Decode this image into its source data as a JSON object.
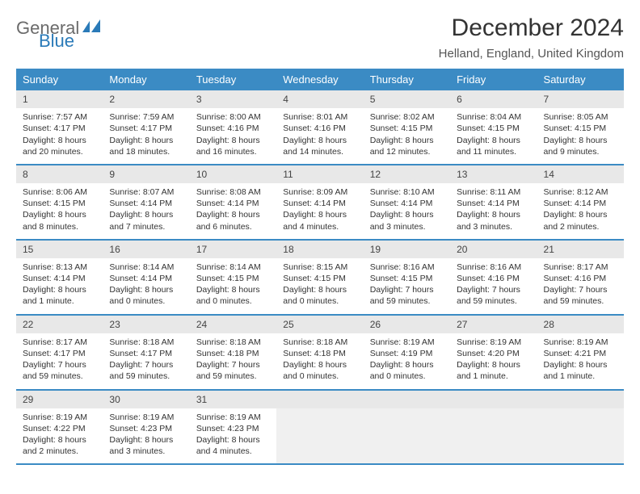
{
  "logo": {
    "text1": "General",
    "text2": "Blue",
    "icon_color": "#2a7ab8"
  },
  "title": "December 2024",
  "location": "Helland, England, United Kingdom",
  "colors": {
    "header_bg": "#3b8bc4",
    "header_text": "#ffffff",
    "daynum_bg": "#e8e8e8",
    "row_border": "#3b8bc4",
    "body_text": "#333333",
    "empty_bg": "#f0f0f0"
  },
  "day_headers": [
    "Sunday",
    "Monday",
    "Tuesday",
    "Wednesday",
    "Thursday",
    "Friday",
    "Saturday"
  ],
  "weeks": [
    [
      {
        "n": "1",
        "sr": "7:57 AM",
        "ss": "4:17 PM",
        "dl": "8 hours and 20 minutes."
      },
      {
        "n": "2",
        "sr": "7:59 AM",
        "ss": "4:17 PM",
        "dl": "8 hours and 18 minutes."
      },
      {
        "n": "3",
        "sr": "8:00 AM",
        "ss": "4:16 PM",
        "dl": "8 hours and 16 minutes."
      },
      {
        "n": "4",
        "sr": "8:01 AM",
        "ss": "4:16 PM",
        "dl": "8 hours and 14 minutes."
      },
      {
        "n": "5",
        "sr": "8:02 AM",
        "ss": "4:15 PM",
        "dl": "8 hours and 12 minutes."
      },
      {
        "n": "6",
        "sr": "8:04 AM",
        "ss": "4:15 PM",
        "dl": "8 hours and 11 minutes."
      },
      {
        "n": "7",
        "sr": "8:05 AM",
        "ss": "4:15 PM",
        "dl": "8 hours and 9 minutes."
      }
    ],
    [
      {
        "n": "8",
        "sr": "8:06 AM",
        "ss": "4:15 PM",
        "dl": "8 hours and 8 minutes."
      },
      {
        "n": "9",
        "sr": "8:07 AM",
        "ss": "4:14 PM",
        "dl": "8 hours and 7 minutes."
      },
      {
        "n": "10",
        "sr": "8:08 AM",
        "ss": "4:14 PM",
        "dl": "8 hours and 6 minutes."
      },
      {
        "n": "11",
        "sr": "8:09 AM",
        "ss": "4:14 PM",
        "dl": "8 hours and 4 minutes."
      },
      {
        "n": "12",
        "sr": "8:10 AM",
        "ss": "4:14 PM",
        "dl": "8 hours and 3 minutes."
      },
      {
        "n": "13",
        "sr": "8:11 AM",
        "ss": "4:14 PM",
        "dl": "8 hours and 3 minutes."
      },
      {
        "n": "14",
        "sr": "8:12 AM",
        "ss": "4:14 PM",
        "dl": "8 hours and 2 minutes."
      }
    ],
    [
      {
        "n": "15",
        "sr": "8:13 AM",
        "ss": "4:14 PM",
        "dl": "8 hours and 1 minute."
      },
      {
        "n": "16",
        "sr": "8:14 AM",
        "ss": "4:14 PM",
        "dl": "8 hours and 0 minutes."
      },
      {
        "n": "17",
        "sr": "8:14 AM",
        "ss": "4:15 PM",
        "dl": "8 hours and 0 minutes."
      },
      {
        "n": "18",
        "sr": "8:15 AM",
        "ss": "4:15 PM",
        "dl": "8 hours and 0 minutes."
      },
      {
        "n": "19",
        "sr": "8:16 AM",
        "ss": "4:15 PM",
        "dl": "7 hours and 59 minutes."
      },
      {
        "n": "20",
        "sr": "8:16 AM",
        "ss": "4:16 PM",
        "dl": "7 hours and 59 minutes."
      },
      {
        "n": "21",
        "sr": "8:17 AM",
        "ss": "4:16 PM",
        "dl": "7 hours and 59 minutes."
      }
    ],
    [
      {
        "n": "22",
        "sr": "8:17 AM",
        "ss": "4:17 PM",
        "dl": "7 hours and 59 minutes."
      },
      {
        "n": "23",
        "sr": "8:18 AM",
        "ss": "4:17 PM",
        "dl": "7 hours and 59 minutes."
      },
      {
        "n": "24",
        "sr": "8:18 AM",
        "ss": "4:18 PM",
        "dl": "7 hours and 59 minutes."
      },
      {
        "n": "25",
        "sr": "8:18 AM",
        "ss": "4:18 PM",
        "dl": "8 hours and 0 minutes."
      },
      {
        "n": "26",
        "sr": "8:19 AM",
        "ss": "4:19 PM",
        "dl": "8 hours and 0 minutes."
      },
      {
        "n": "27",
        "sr": "8:19 AM",
        "ss": "4:20 PM",
        "dl": "8 hours and 1 minute."
      },
      {
        "n": "28",
        "sr": "8:19 AM",
        "ss": "4:21 PM",
        "dl": "8 hours and 1 minute."
      }
    ],
    [
      {
        "n": "29",
        "sr": "8:19 AM",
        "ss": "4:22 PM",
        "dl": "8 hours and 2 minutes."
      },
      {
        "n": "30",
        "sr": "8:19 AM",
        "ss": "4:23 PM",
        "dl": "8 hours and 3 minutes."
      },
      {
        "n": "31",
        "sr": "8:19 AM",
        "ss": "4:23 PM",
        "dl": "8 hours and 4 minutes."
      },
      null,
      null,
      null,
      null
    ]
  ],
  "labels": {
    "sunrise": "Sunrise:",
    "sunset": "Sunset:",
    "daylight": "Daylight:"
  }
}
